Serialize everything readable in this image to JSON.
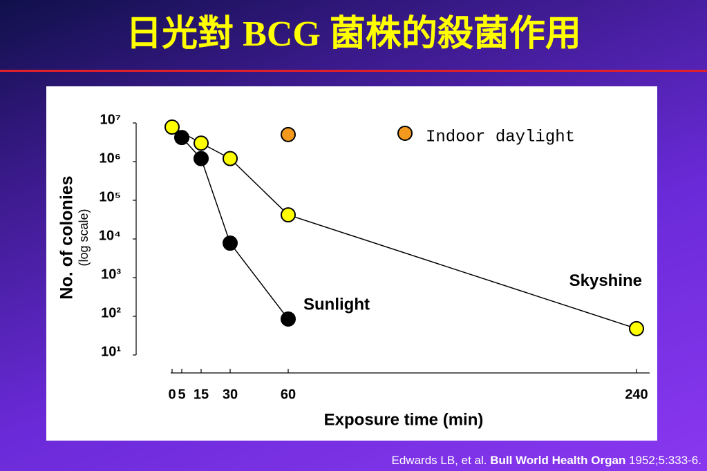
{
  "chart_data": {
    "type": "line",
    "title": "日光對 BCG 菌株的殺菌作用",
    "y_label": "No. of colonies",
    "y_sublabel": "(log scale)",
    "x_label": "Exposure time (min)",
    "y_log": true,
    "xlim": [
      0,
      240
    ],
    "xticks": [
      {
        "value": 0,
        "label": "0"
      },
      5,
      15,
      30,
      60,
      240
    ],
    "ylim": [
      10,
      10000000
    ],
    "yticks": [
      {
        "value": 10,
        "label": "10¹"
      },
      {
        "value": 100,
        "label": "10²"
      },
      {
        "value": 1000,
        "label": "10³"
      },
      {
        "value": 10000,
        "label": "10⁴"
      },
      {
        "value": 100000,
        "label": "10⁵"
      },
      {
        "value": 1000000,
        "label": "10⁶"
      },
      {
        "value": 10000000,
        "label": "10⁷"
      }
    ],
    "series": [
      {
        "name": "Skyshine",
        "color": "#ffff00",
        "x": [
          0,
          15,
          30,
          60,
          240
        ],
        "values": [
          7800000,
          3000000,
          1200000,
          42000,
          48
        ]
      },
      {
        "name": "Sunlight",
        "color": "#000000",
        "x": [
          5,
          15,
          30,
          60
        ],
        "values": [
          4200000,
          1200000,
          7800,
          85
        ]
      },
      {
        "name": "Indoor daylight",
        "color": "#f39a1e",
        "x": [
          60
        ],
        "values": [
          5000000
        ]
      }
    ]
  },
  "citation": {
    "authors": "Edwards LB, et al. ",
    "journal": "Bull World Health Organ",
    "reference": " 1952;5:333-6."
  }
}
